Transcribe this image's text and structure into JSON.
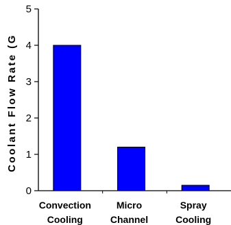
{
  "chart_data": {
    "type": "bar",
    "categories": [
      [
        "Convection",
        "Cooling"
      ],
      [
        "Micro",
        "Channel"
      ],
      [
        "Spray",
        "Cooling"
      ]
    ],
    "values": [
      4.0,
      1.2,
      0.15
    ],
    "ylabel": "Coolant Flow Rate (G",
    "ylim": [
      0,
      5
    ],
    "yticks": [
      0,
      1,
      2,
      3,
      4,
      5
    ],
    "bar_color": "#0000ff",
    "bar_edge_color": "#000000",
    "grid": false
  }
}
